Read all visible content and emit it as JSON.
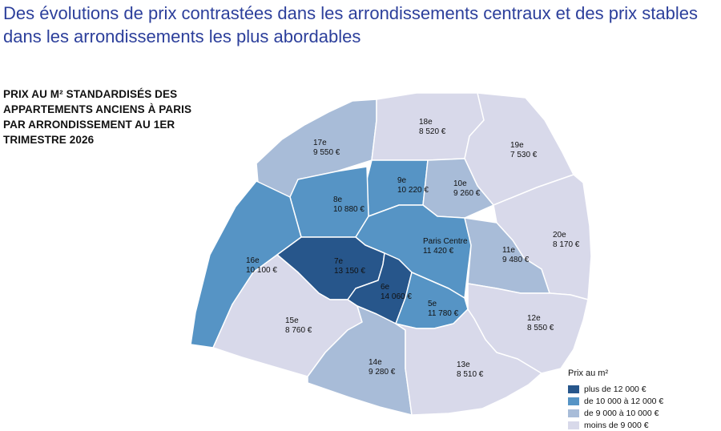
{
  "headline": "Des évolutions de prix contrastées dans les arrondissements centraux et des prix stables dans les arrondissements les plus abordables",
  "subtitle": "Prix au m² standardisés des appartements anciens à Paris par arrondissement au 1er trimestre 2026",
  "legend": {
    "title": "Prix au m²",
    "items": [
      {
        "label": "plus de 12 000 €",
        "color": "#27568b"
      },
      {
        "label": "de 10 000 à 12 000 €",
        "color": "#5694c5"
      },
      {
        "label": "de 9 000 à 10 000 €",
        "color": "#a8bcd8"
      },
      {
        "label": "moins de 9 000 €",
        "color": "#d8d9ea"
      }
    ]
  },
  "districts": [
    {
      "id": "17e",
      "name": "17e",
      "price": "9 550 €",
      "color": "#a8bcd8"
    },
    {
      "id": "18e",
      "name": "18e",
      "price": "8 520 €",
      "color": "#d8d9ea"
    },
    {
      "id": "19e",
      "name": "19e",
      "price": "7 530 €",
      "color": "#d8d9ea"
    },
    {
      "id": "9e",
      "name": "9e",
      "price": "10 220 €",
      "color": "#5694c5"
    },
    {
      "id": "10e",
      "name": "10e",
      "price": "9 260 €",
      "color": "#a8bcd8"
    },
    {
      "id": "8e",
      "name": "8e",
      "price": "10 880 €",
      "color": "#5694c5"
    },
    {
      "id": "20e",
      "name": "20e",
      "price": "8 170 €",
      "color": "#d8d9ea"
    },
    {
      "id": "centre",
      "name": "Paris Centre",
      "price": "11 420 €",
      "color": "#5694c5"
    },
    {
      "id": "16e",
      "name": "16e",
      "price": "10 100 €",
      "color": "#5694c5"
    },
    {
      "id": "7e",
      "name": "7e",
      "price": "13 150 €",
      "color": "#27568b"
    },
    {
      "id": "11e",
      "name": "11e",
      "price": "9 480 €",
      "color": "#a8bcd8"
    },
    {
      "id": "6e",
      "name": "6e",
      "price": "14 060 €",
      "color": "#27568b"
    },
    {
      "id": "5e",
      "name": "5e",
      "price": "11 780 €",
      "color": "#5694c5"
    },
    {
      "id": "15e",
      "name": "15e",
      "price": "8 760 €",
      "color": "#d8d9ea"
    },
    {
      "id": "12e",
      "name": "12e",
      "price": "8 550 €",
      "color": "#d8d9ea"
    },
    {
      "id": "14e",
      "name": "14e",
      "price": "9 280 €",
      "color": "#a8bcd8"
    },
    {
      "id": "13e",
      "name": "13e",
      "price": "8 510 €",
      "color": "#d8d9ea"
    }
  ]
}
